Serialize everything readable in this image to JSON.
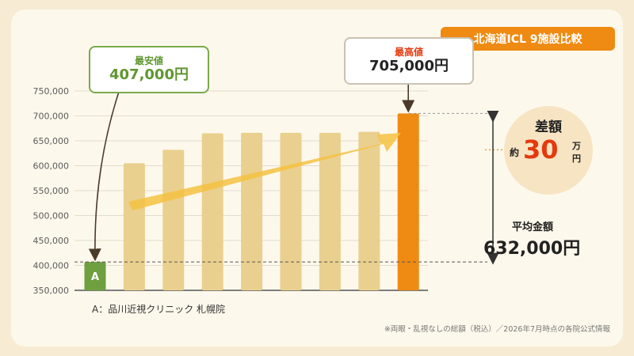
{
  "badge": "北海道ICL 9施設比較",
  "min_callout": {
    "title": "最安値",
    "value": "407,000円"
  },
  "max_callout": {
    "title": "最高値",
    "value": "705,000円"
  },
  "diff": {
    "label": "差額",
    "prefix": "約",
    "amount": "30",
    "unit_man": "万",
    "unit_yen": "円"
  },
  "average": {
    "label": "平均金額",
    "value": "632,000円"
  },
  "footnote_a": "A：品川近視クリニック 札幌院",
  "source_note": "※両眼・乱視なしの総額（税込）／2026年7月時点の各院公式情報",
  "colors": {
    "min_bar": "#6fa040",
    "max_bar": "#ef8a12",
    "other_bar": "#ead08e",
    "trend_arrow": "#f5c242",
    "avg_line": "#d9a63a"
  },
  "chart_data": {
    "type": "bar",
    "y_ticks": [
      "350,000",
      "400,000",
      "450,000",
      "500,000",
      "550,000",
      "600,000",
      "650,000",
      "700,000",
      "750,000"
    ],
    "ylim": [
      350000,
      750000
    ],
    "categories": [
      "A",
      "",
      "",
      "",
      "",
      "",
      "",
      "",
      ""
    ],
    "values": [
      407000,
      605000,
      632000,
      665000,
      666000,
      666000,
      666000,
      668000,
      705000
    ],
    "average": 632000,
    "grid": true
  }
}
